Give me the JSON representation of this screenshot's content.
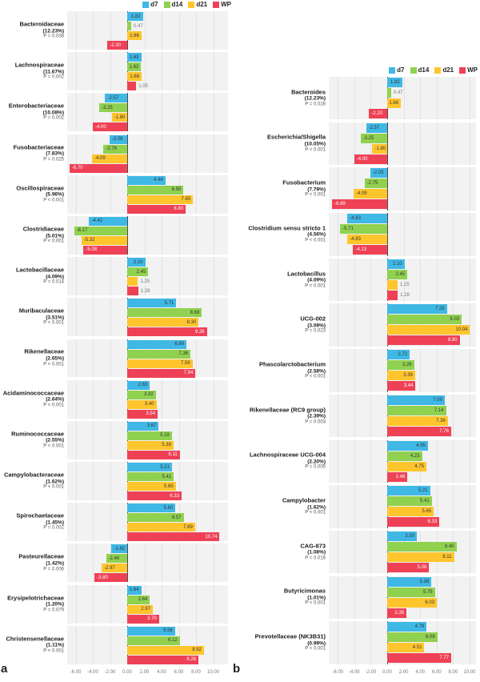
{
  "figure": {
    "panel_a_letter": "a",
    "panel_b_letter": "b",
    "axis_tick_labels": [
      "-6.00",
      "-4.00",
      "-2.00",
      "0.00",
      "2.00",
      "4.00",
      "6.00",
      "8.00",
      "10.00"
    ]
  },
  "legend": {
    "items": [
      {
        "label": "d7",
        "color": "#3FB8E5"
      },
      {
        "label": "d14",
        "color": "#90D14F"
      },
      {
        "label": "d21",
        "color": "#FFC52D"
      },
      {
        "label": "WP",
        "color": "#EE4156"
      }
    ]
  },
  "chart_data": [
    {
      "type": "bar",
      "orientation": "horizontal",
      "panel_label": "a",
      "series_labels": [
        "d7",
        "d14",
        "d21",
        "WP"
      ],
      "series_colors": [
        "#3FB8E5",
        "#90D14F",
        "#FFC52D",
        "#EE4156"
      ],
      "xticks": [
        -6,
        -4,
        -2,
        0,
        2,
        4,
        6,
        8,
        10
      ],
      "xtick_labels": [
        "-6.00",
        "-4.00",
        "-2.00",
        "0.00",
        "2.00",
        "4.00",
        "6.00",
        "8.00",
        "10.00"
      ],
      "xlim": [
        -6.9,
        11.7
      ],
      "rows": [
        {
          "name": "Bacteroidaceae",
          "abundance": "(12.23%)",
          "p": "P = 0.038",
          "values": [
            1.82,
            0.47,
            1.66,
            -2.3
          ]
        },
        {
          "name": "Lachnospiraceae",
          "abundance": "(11.67%)",
          "p": "P = 0.002",
          "values": [
            1.63,
            1.62,
            1.68,
            1.05
          ]
        },
        {
          "name": "Enterobacteriaceae",
          "abundance": "(10.08%)",
          "p": "P = 0.002",
          "values": [
            -2.57,
            -3.25,
            -1.8,
            -4.0
          ]
        },
        {
          "name": "Fusobacteriaceae",
          "abundance": "(7.83%)",
          "p": "P = 0.025",
          "values": [
            -2.06,
            -2.76,
            -4.09,
            -6.7
          ]
        },
        {
          "name": "Oscillospiraceae",
          "abundance": "(5.96%)",
          "p": "P < 0.001",
          "values": [
            4.44,
            6.55,
            7.65,
            6.8
          ]
        },
        {
          "name": "Clostridiaceae",
          "abundance": "(5.01%)",
          "p": "P < 0.001",
          "values": [
            -4.42,
            -6.17,
            -5.32,
            -5.08
          ]
        },
        {
          "name": "Lactobacillaceae",
          "abundance": "(4.09%)",
          "p": "P = 0.014",
          "values": [
            2.1,
            2.45,
            1.25,
            1.28
          ]
        },
        {
          "name": "Muribaculaceae",
          "abundance": "(3.51%)",
          "p": "P < 0.001",
          "values": [
            5.71,
            8.68,
            8.3,
            9.26
          ]
        },
        {
          "name": "Rikenellaceae",
          "abundance": "(2.65%)",
          "p": "P < 0.001",
          "values": [
            6.89,
            7.36,
            7.59,
            7.94
          ]
        },
        {
          "name": "Acidaminococcaceae",
          "abundance": "(2.64%)",
          "p": "P < 0.001",
          "values": [
            2.63,
            3.32,
            3.4,
            3.54
          ]
        },
        {
          "name": "Ruminococcaceae",
          "abundance": "(2.55%)",
          "p": "P < 0.001",
          "values": [
            3.67,
            5.19,
            5.39,
            6.11
          ]
        },
        {
          "name": "Campylobacteraceae",
          "abundance": "(1.62%)",
          "p": "P < 0.001",
          "values": [
            5.21,
            5.41,
            5.65,
            6.33
          ]
        },
        {
          "name": "Spirochaetaceae",
          "abundance": "(1.45%)",
          "p": "P = 0.002",
          "values": [
            5.6,
            6.57,
            7.89,
            10.74
          ]
        },
        {
          "name": "Pasteurellaceae",
          "abundance": "(1.42%)",
          "p": "P = 0.006",
          "values": [
            -1.82,
            -2.46,
            -2.97,
            -3.8
          ]
        },
        {
          "name": "Erysipelotrichaceae",
          "abundance": "(1.20%)",
          "p": "P = 0.079",
          "values": [
            1.64,
            2.64,
            2.97,
            3.7
          ]
        },
        {
          "name": "Christensenellaceae",
          "abundance": "(1.11%)",
          "p": "P < 0.001",
          "values": [
            5.56,
            6.12,
            8.92,
            8.28
          ]
        }
      ]
    },
    {
      "type": "bar",
      "orientation": "horizontal",
      "panel_label": "b",
      "series_labels": [
        "d7",
        "d14",
        "d21",
        "WP"
      ],
      "series_colors": [
        "#3FB8E5",
        "#90D14F",
        "#FFC52D",
        "#EE4156"
      ],
      "xticks": [
        -6,
        -4,
        -2,
        0,
        2,
        4,
        6,
        8,
        10
      ],
      "xtick_labels": [
        "-6.00",
        "-4.00",
        "-2.00",
        "0.00",
        "2.00",
        "4.00",
        "6.00",
        "8.00",
        "10.00"
      ],
      "xlim": [
        -6.9,
        10.8
      ],
      "rows": [
        {
          "name": "Bacteroides",
          "abundance": "(12.23%)",
          "p": "P = 0.028",
          "values": [
            1.82,
            0.47,
            1.66,
            -2.2
          ]
        },
        {
          "name": "Escherichia/Shigella",
          "abundance": "(10.05%)",
          "p": "P < 0.001",
          "values": [
            -2.57,
            -3.25,
            -1.8,
            -4.0
          ]
        },
        {
          "name": "Fusobacterium",
          "abundance": "(7.79%)",
          "p": "P < 0.001",
          "values": [
            -2.05,
            -2.75,
            -4.09,
            -6.69
          ]
        },
        {
          "name": "Clostridium sensu stricto 1",
          "abundance": "(4.56%)",
          "p": "P < 0.001",
          "values": [
            -4.83,
            -5.71,
            -4.83,
            -4.13
          ]
        },
        {
          "name": "Lactobacillus",
          "abundance": "(4.09%)",
          "p": "P < 0.001",
          "values": [
            2.1,
            2.45,
            1.25,
            1.28
          ]
        },
        {
          "name": "UCG-002",
          "abundance": "(3.09%)",
          "p": "P = 0.023",
          "values": [
            7.25,
            9.03,
            10.04,
            8.8
          ]
        },
        {
          "name": "Phascolarctobacterium",
          "abundance": "(2.58%)",
          "p": "P < 0.001",
          "values": [
            2.72,
            3.26,
            3.39,
            3.44
          ]
        },
        {
          "name": "Rikenellaceae (RC9 group)",
          "abundance": "(2.39%)",
          "p": "P = 0.003",
          "values": [
            7.0,
            7.14,
            7.36,
            7.76
          ]
        },
        {
          "name": "Lachnospiraceae UCG-004",
          "abundance": "(2.20%)",
          "p": "P = 0.005",
          "values": [
            4.95,
            4.23,
            4.75,
            2.46
          ]
        },
        {
          "name": "Campylobacter",
          "abundance": "(1.62%)",
          "p": "P < 0.001",
          "values": [
            5.21,
            5.41,
            5.65,
            6.33
          ]
        },
        {
          "name": "CAG-873",
          "abundance": "(1.08%)",
          "p": "P = 0.016",
          "values": [
            3.59,
            8.4,
            8.11,
            5.08
          ]
        },
        {
          "name": "Butyricimonas",
          "abundance": "(1.01%)",
          "p": "P < 0.001",
          "values": [
            5.36,
            5.79,
            6.03,
            2.35
          ]
        },
        {
          "name": "Prevotellaceae (NK3B31)",
          "abundance": "(0.99%)",
          "p": "P < 0.001",
          "values": [
            4.79,
            6.09,
            4.51,
            7.77
          ]
        }
      ]
    }
  ]
}
